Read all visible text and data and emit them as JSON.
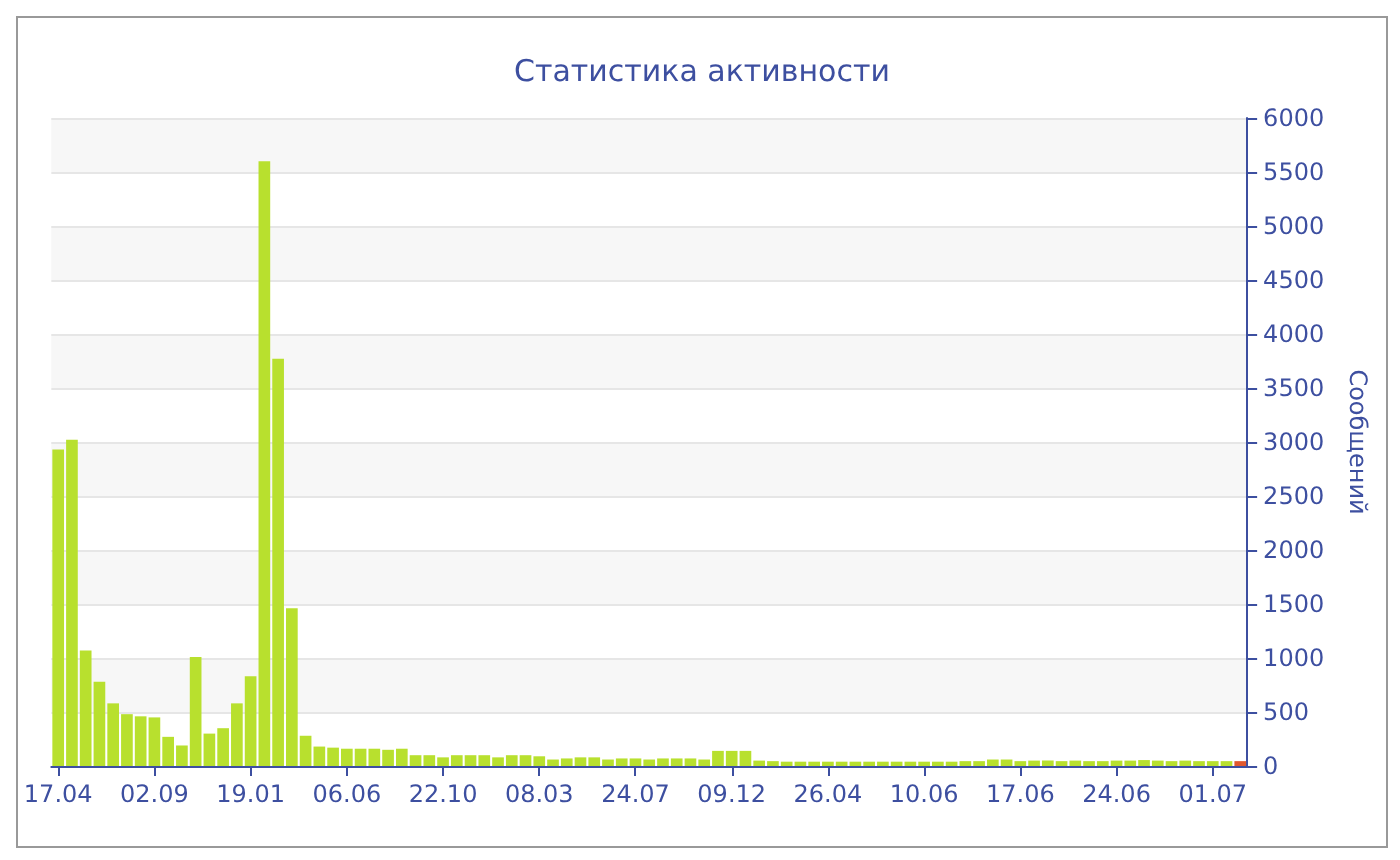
{
  "chart_data": {
    "type": "bar",
    "title": "Статистика активности",
    "ylabel": "Сообщений",
    "categories": [
      "17.04",
      null,
      null,
      null,
      null,
      null,
      null,
      "02.09",
      null,
      null,
      null,
      null,
      null,
      null,
      "19.01",
      null,
      null,
      null,
      null,
      null,
      null,
      "06.06",
      null,
      null,
      null,
      null,
      null,
      null,
      "22.10",
      null,
      null,
      null,
      null,
      null,
      null,
      "08.03",
      null,
      null,
      null,
      null,
      null,
      null,
      "24.07",
      null,
      null,
      null,
      null,
      null,
      null,
      "09.12",
      null,
      null,
      null,
      null,
      null,
      null,
      "26.04",
      null,
      null,
      null,
      null,
      null,
      null,
      "10.06",
      null,
      null,
      null,
      null,
      null,
      null,
      "17.06",
      null,
      null,
      null,
      null,
      null,
      null,
      "24.06",
      null,
      null,
      null,
      null,
      null,
      null,
      "01.07",
      null,
      null
    ],
    "values": [
      2930,
      3020,
      1070,
      780,
      580,
      480,
      460,
      450,
      270,
      190,
      1010,
      300,
      350,
      580,
      830,
      5600,
      3770,
      1460,
      280,
      180,
      170,
      160,
      160,
      160,
      150,
      160,
      100,
      100,
      80,
      100,
      100,
      100,
      80,
      100,
      100,
      90,
      60,
      70,
      80,
      80,
      60,
      70,
      70,
      60,
      70,
      70,
      70,
      60,
      140,
      140,
      140,
      50,
      45,
      40,
      40,
      40,
      40,
      40,
      40,
      40,
      40,
      40,
      40,
      40,
      40,
      40,
      45,
      45,
      60,
      60,
      45,
      50,
      50,
      45,
      50,
      45,
      45,
      50,
      50,
      55,
      50,
      45,
      50,
      45,
      45,
      45,
      45
    ],
    "colors": [
      "#b8e02e",
      "#b8e02e",
      "#b8e02e",
      "#b8e02e",
      "#b8e02e",
      "#b8e02e",
      "#b8e02e",
      "#b8e02e",
      "#b8e02e",
      "#b8e02e",
      "#b8e02e",
      "#b8e02e",
      "#b8e02e",
      "#b8e02e",
      "#b8e02e",
      "#b8e02e",
      "#b8e02e",
      "#b8e02e",
      "#b8e02e",
      "#b8e02e",
      "#b8e02e",
      "#b8e02e",
      "#b8e02e",
      "#b8e02e",
      "#b8e02e",
      "#b8e02e",
      "#b8e02e",
      "#b8e02e",
      "#b8e02e",
      "#b8e02e",
      "#b8e02e",
      "#b8e02e",
      "#b8e02e",
      "#b8e02e",
      "#b8e02e",
      "#b8e02e",
      "#b8e02e",
      "#b8e02e",
      "#b8e02e",
      "#b8e02e",
      "#b8e02e",
      "#b8e02e",
      "#b8e02e",
      "#b8e02e",
      "#b8e02e",
      "#b8e02e",
      "#b8e02e",
      "#b8e02e",
      "#b8e02e",
      "#b8e02e",
      "#b8e02e",
      "#b8e02e",
      "#b8e02e",
      "#b8e02e",
      "#b8e02e",
      "#b8e02e",
      "#b8e02e",
      "#b8e02e",
      "#b8e02e",
      "#b8e02e",
      "#b8e02e",
      "#b8e02e",
      "#b8e02e",
      "#b8e02e",
      "#b8e02e",
      "#b8e02e",
      "#b8e02e",
      "#b8e02e",
      "#b8e02e",
      "#b8e02e",
      "#b8e02e",
      "#b8e02e",
      "#b8e02e",
      "#b8e02e",
      "#b8e02e",
      "#b8e02e",
      "#b8e02e",
      "#b8e02e",
      "#b8e02e",
      "#b8e02e",
      "#b8e02e",
      "#b8e02e",
      "#b8e02e",
      "#b8e02e",
      "#b8e02e",
      "#b8e02e",
      "#e0582e"
    ],
    "ylim": [
      0,
      6000
    ],
    "yticks": [
      0,
      500,
      1000,
      1500,
      2000,
      2500,
      3000,
      3500,
      4000,
      4500,
      5000,
      5500,
      6000
    ],
    "grid": "y"
  }
}
